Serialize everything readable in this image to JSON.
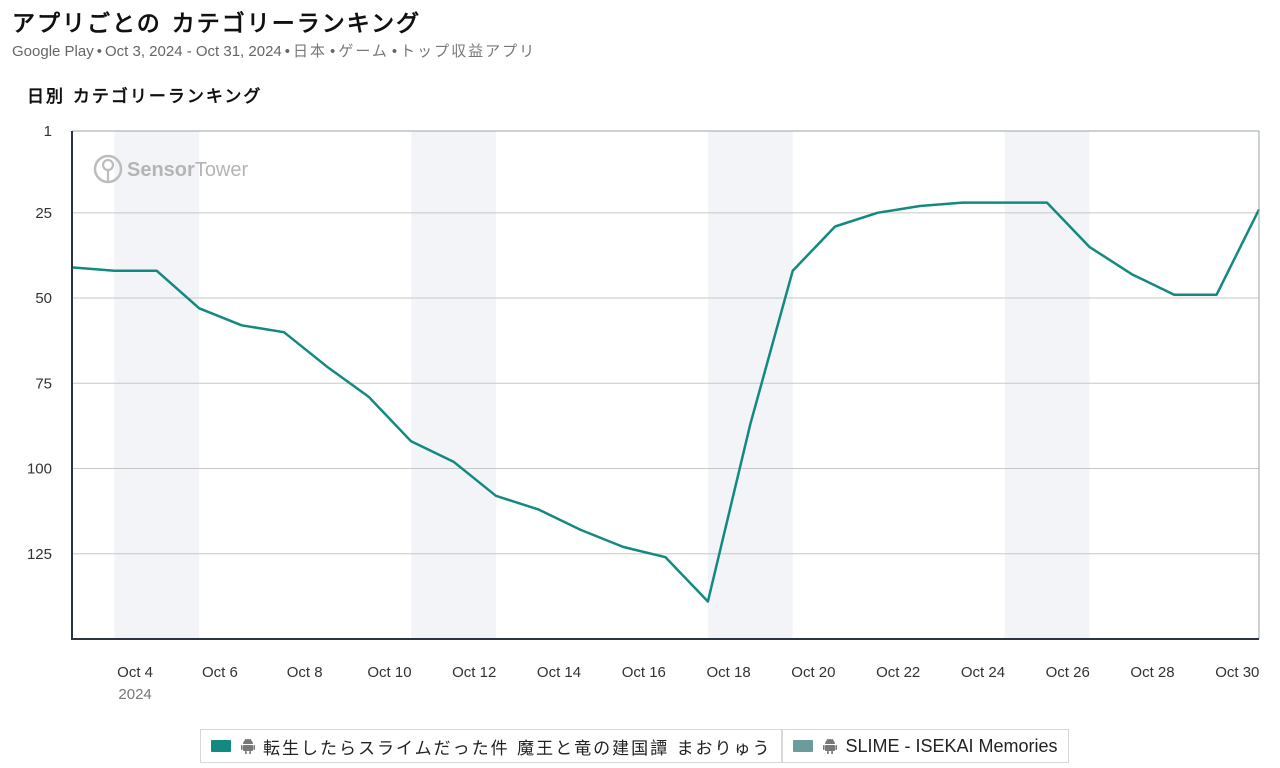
{
  "header": {
    "title": "アプリごとの カテゴリーランキング",
    "subtitle": {
      "store": "Google Play",
      "date_range": "Oct 3, 2024 - Oct 31, 2024",
      "country": "日本",
      "category": "ゲーム",
      "chart_kind": "トップ収益アプリ"
    }
  },
  "watermark": {
    "brand_bold": "Sensor",
    "brand_light": "Tower"
  },
  "chart_data": {
    "type": "line",
    "title": "日別 カテゴリーランキング",
    "y_axis": {
      "inverted": true,
      "ticks": [
        1,
        25,
        50,
        75,
        100,
        125
      ],
      "range": [
        1,
        150
      ]
    },
    "x_axis": {
      "start_date": "2024-10-03",
      "end_date": "2024-10-31",
      "tick_labels": [
        "Oct 4",
        "Oct 6",
        "Oct 8",
        "Oct 10",
        "Oct 12",
        "Oct 14",
        "Oct 16",
        "Oct 18",
        "Oct 20",
        "Oct 22",
        "Oct 24",
        "Oct 26",
        "Oct 28",
        "Oct 30"
      ],
      "year_label": "2024"
    },
    "weekend_shading": [
      [
        "Oct 4",
        "Oct 5"
      ],
      [
        "Oct 11",
        "Oct 12"
      ],
      [
        "Oct 18",
        "Oct 19"
      ],
      [
        "Oct 25",
        "Oct 26"
      ]
    ],
    "grid": true,
    "series": [
      {
        "name": "転生したらスライムだった件 魔王と竜の建国譚 まおりゅう",
        "color": "#138a80",
        "x": [
          "Oct 3",
          "Oct 4",
          "Oct 5",
          "Oct 6",
          "Oct 7",
          "Oct 8",
          "Oct 9",
          "Oct 10",
          "Oct 11",
          "Oct 12",
          "Oct 13",
          "Oct 14",
          "Oct 15",
          "Oct 16",
          "Oct 17",
          "Oct 18",
          "Oct 19",
          "Oct 20",
          "Oct 21",
          "Oct 22",
          "Oct 23",
          "Oct 24",
          "Oct 25",
          "Oct 26",
          "Oct 27",
          "Oct 28",
          "Oct 29",
          "Oct 30",
          "Oct 31"
        ],
        "values": [
          41,
          42,
          42,
          53,
          58,
          60,
          70,
          79,
          92,
          98,
          108,
          112,
          118,
          123,
          126,
          139,
          87,
          42,
          29,
          25,
          23,
          22,
          22,
          22,
          35,
          43,
          49,
          49,
          24
        ]
      }
    ],
    "legend": [
      {
        "label": "転生したらスライムだった件 魔王と竜の建国譚 まおりゅう",
        "color": "#138a80",
        "platform_icon": "android-icon"
      },
      {
        "label": "SLIME - ISEKAI Memories",
        "color": "#6a9c9b",
        "platform_icon": "android-icon"
      }
    ]
  }
}
